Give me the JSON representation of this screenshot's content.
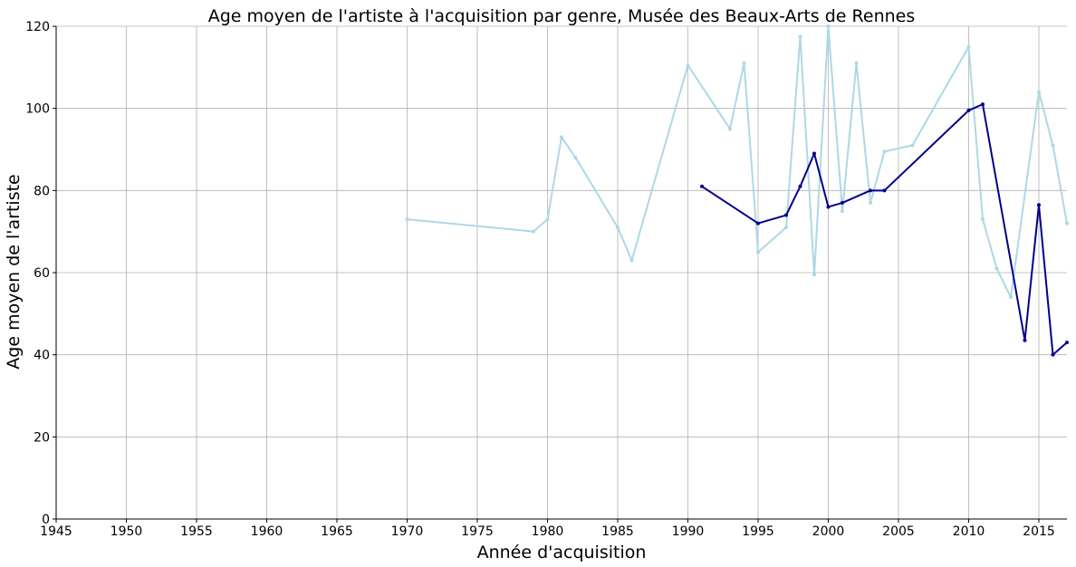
{
  "chart_data": {
    "type": "line",
    "title": "Age moyen de l'artiste à l'acquisition par genre, Musée des Beaux-Arts de Rennes",
    "xlabel": "Année d'acquisition",
    "ylabel": "Age moyen de l'artiste",
    "xlim": [
      1945,
      2017
    ],
    "ylim": [
      0,
      120
    ],
    "xticks": [
      1945,
      1950,
      1955,
      1960,
      1965,
      1970,
      1975,
      1980,
      1985,
      1990,
      1995,
      2000,
      2005,
      2010,
      2015
    ],
    "yticks": [
      0,
      20,
      40,
      60,
      80,
      100,
      120
    ],
    "grid": true,
    "legend": "none",
    "series": [
      {
        "color": "#add8e6",
        "x": [
          1970,
          1979,
          1980,
          1981,
          1982,
          1985,
          1986,
          1990,
          1993,
          1994,
          1995,
          1997,
          1998,
          1999,
          2000,
          2001,
          2002,
          2003,
          2004,
          2006,
          2010,
          2011,
          2012,
          2013,
          2015,
          2016,
          2017
        ],
        "y": [
          73,
          70,
          73,
          93,
          88,
          71,
          63,
          110.5,
          95,
          111,
          65,
          71,
          117.5,
          59.5,
          120,
          75,
          111,
          77,
          89.5,
          91,
          115,
          73,
          61,
          54,
          104,
          91,
          72
        ]
      },
      {
        "color": "#00008b",
        "x": [
          1991,
          1995,
          1997,
          1998,
          1999,
          2000,
          2001,
          2003,
          2004,
          2010,
          2011,
          2014,
          2015,
          2016,
          2017
        ],
        "y": [
          81,
          72,
          74,
          81,
          89,
          76,
          77,
          80,
          80,
          99.5,
          101,
          43.5,
          76.5,
          40,
          43
        ]
      }
    ]
  }
}
